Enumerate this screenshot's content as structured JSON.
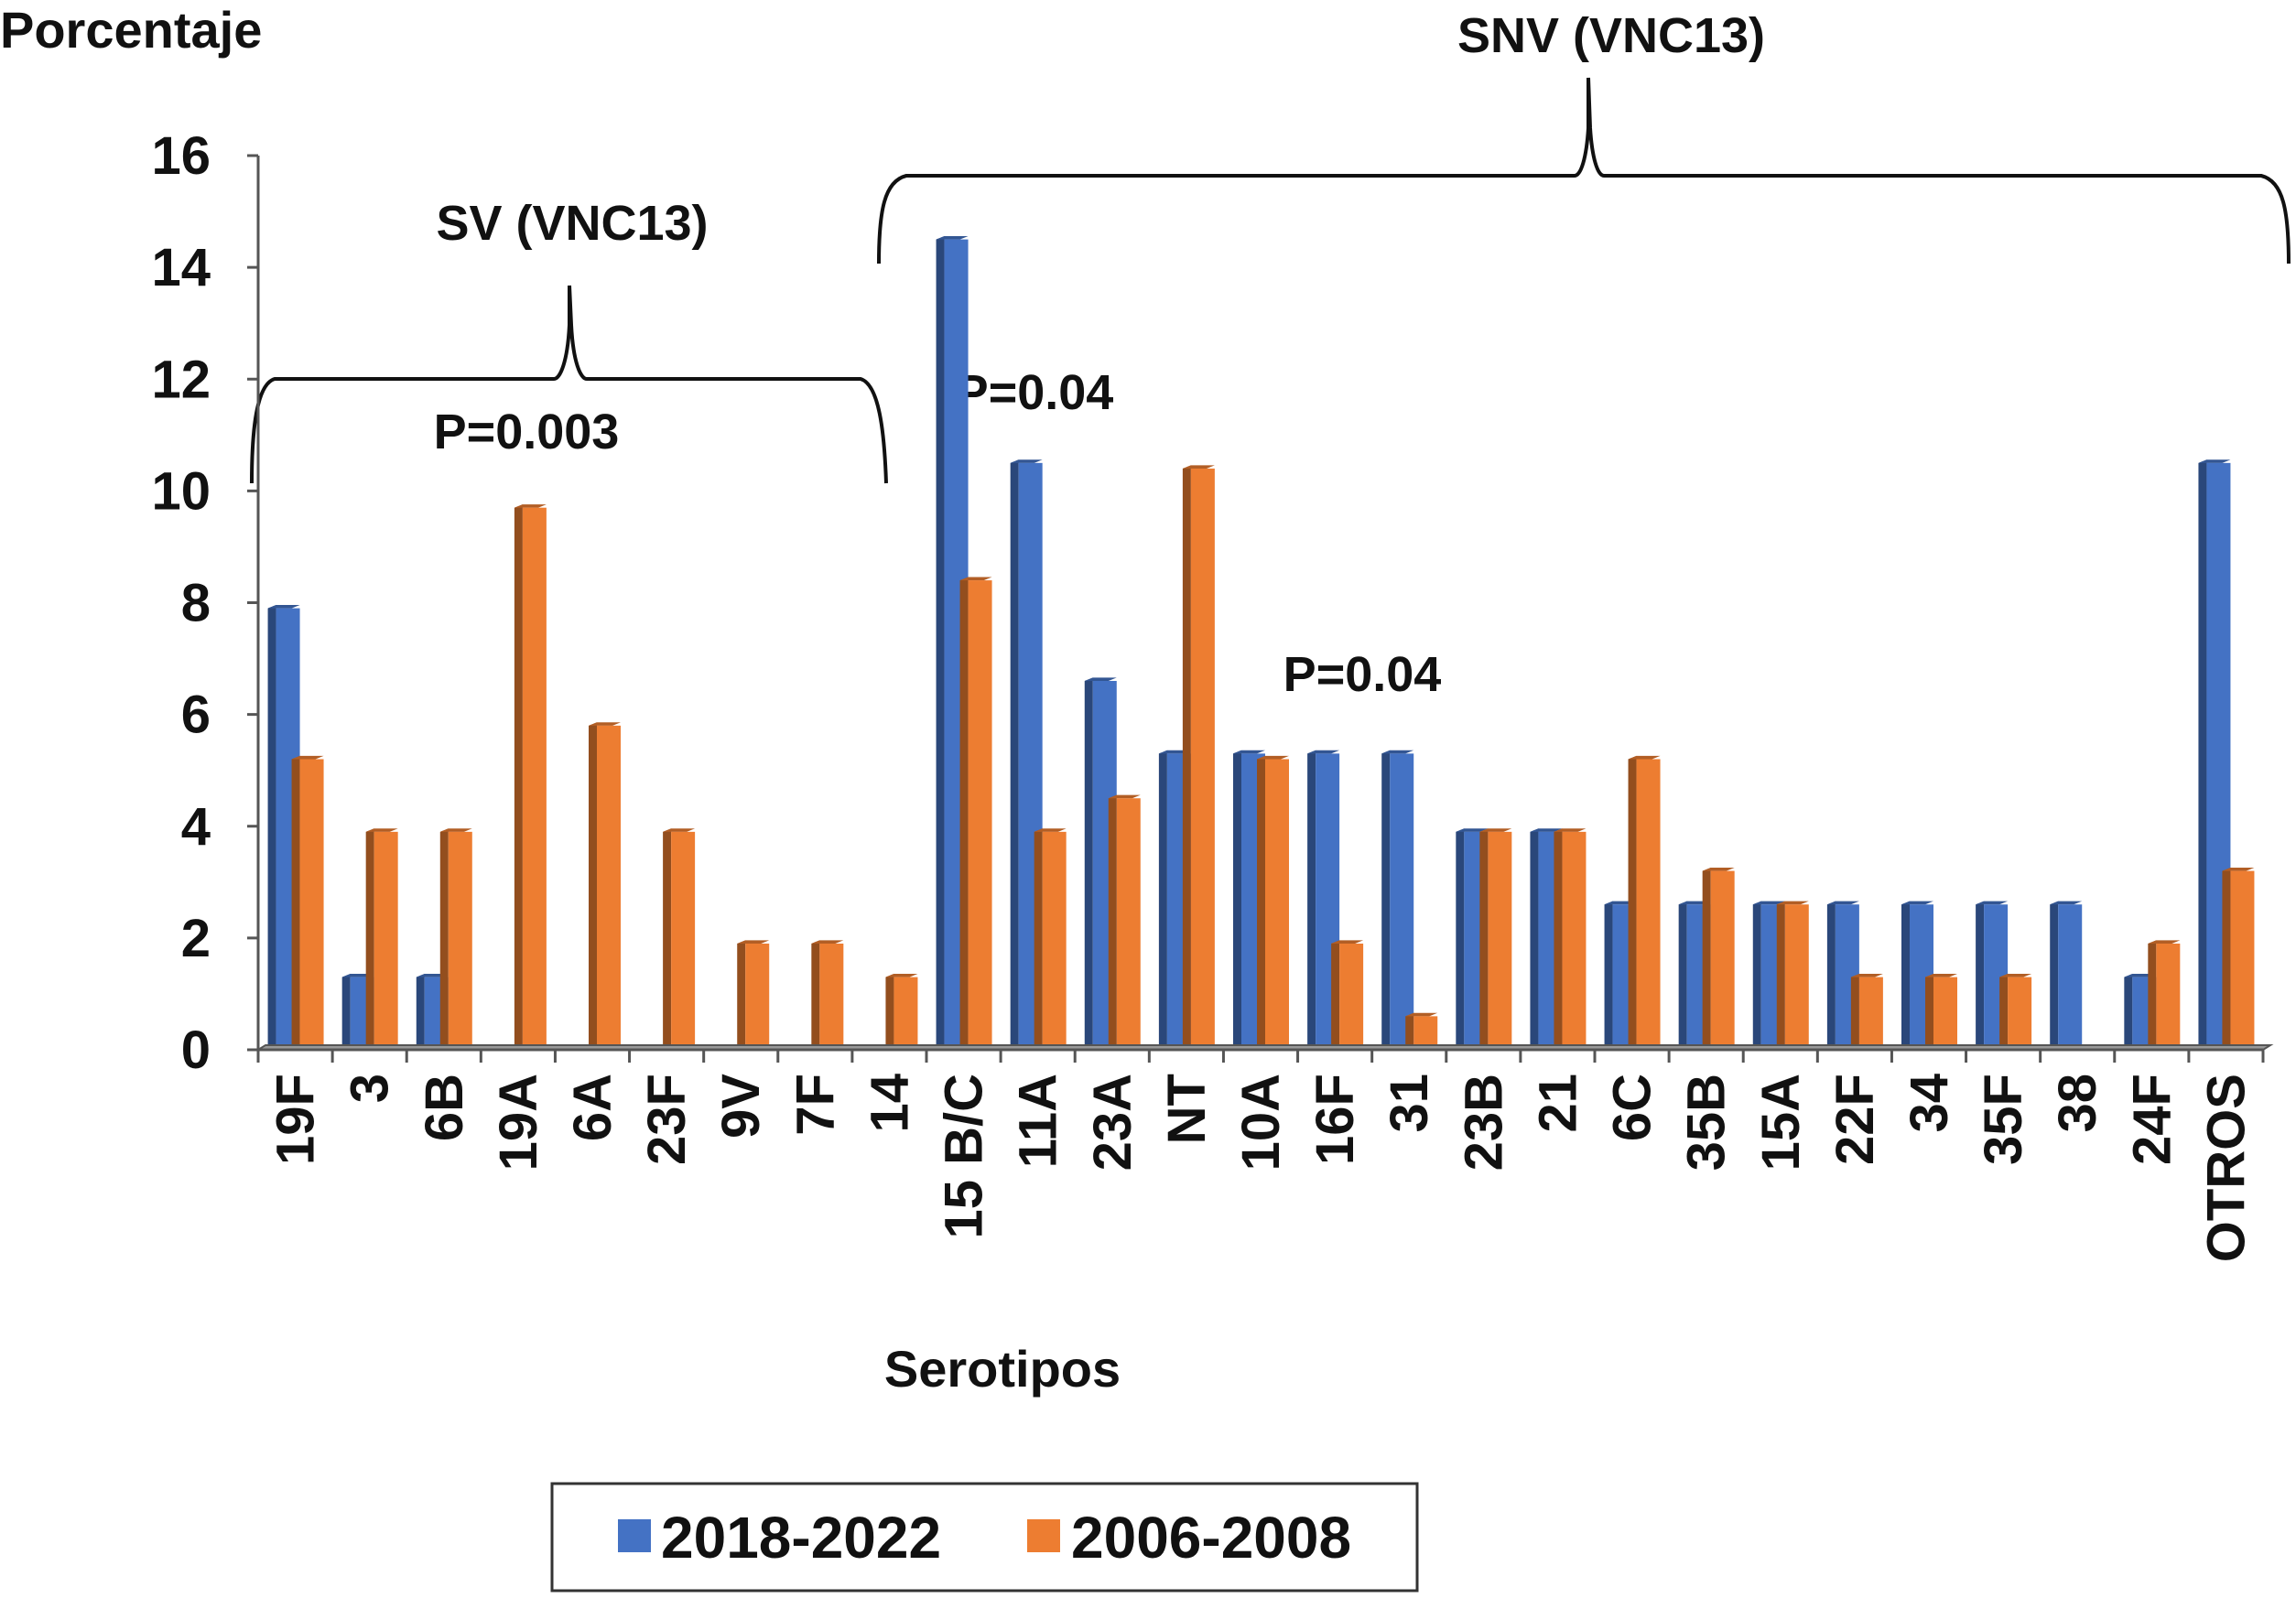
{
  "chart_data": {
    "type": "bar",
    "ylabel": "Porcentaje",
    "xlabel": "Serotipos",
    "ylim": [
      0,
      16
    ],
    "yticks": [
      "0",
      "2",
      "4",
      "6",
      "8",
      "10",
      "12",
      "14",
      "16"
    ],
    "grid": false,
    "legend_position": "bottom",
    "categories": [
      "19F",
      "3",
      "6B",
      "19A",
      "6A",
      "23F",
      "9V",
      "7F",
      "14",
      "15 B/C",
      "11A",
      "23A",
      "NT",
      "10A",
      "16F",
      "31",
      "23B",
      "21",
      "6C",
      "35B",
      "15A",
      "22F",
      "34",
      "35F",
      "38",
      "24F",
      "OTROS"
    ],
    "series": [
      {
        "name": "2018-2022",
        "color": "#4472C4",
        "values": [
          7.9,
          1.3,
          1.3,
          0,
          0,
          0,
          0,
          0,
          0,
          14.5,
          10.5,
          6.6,
          5.3,
          5.3,
          5.3,
          5.3,
          3.9,
          3.9,
          2.6,
          2.6,
          2.6,
          2.6,
          2.6,
          2.6,
          2.6,
          1.3,
          10.5
        ]
      },
      {
        "name": "2006-2008",
        "color": "#ED7D31",
        "values": [
          5.2,
          3.9,
          3.9,
          9.7,
          5.8,
          3.9,
          1.9,
          1.9,
          1.3,
          8.4,
          3.9,
          4.5,
          10.4,
          5.2,
          1.9,
          0.6,
          3.9,
          3.9,
          5.2,
          3.2,
          2.6,
          1.3,
          1.3,
          1.3,
          0,
          1.9,
          3.2
        ]
      }
    ],
    "annotations": {
      "sv_group": "SV (VNC13)",
      "snv_group": "SNV (VNC13)",
      "p_sv": "P=0.003",
      "p_15bc": "P=0.04",
      "p_31": "P=0.04"
    }
  }
}
